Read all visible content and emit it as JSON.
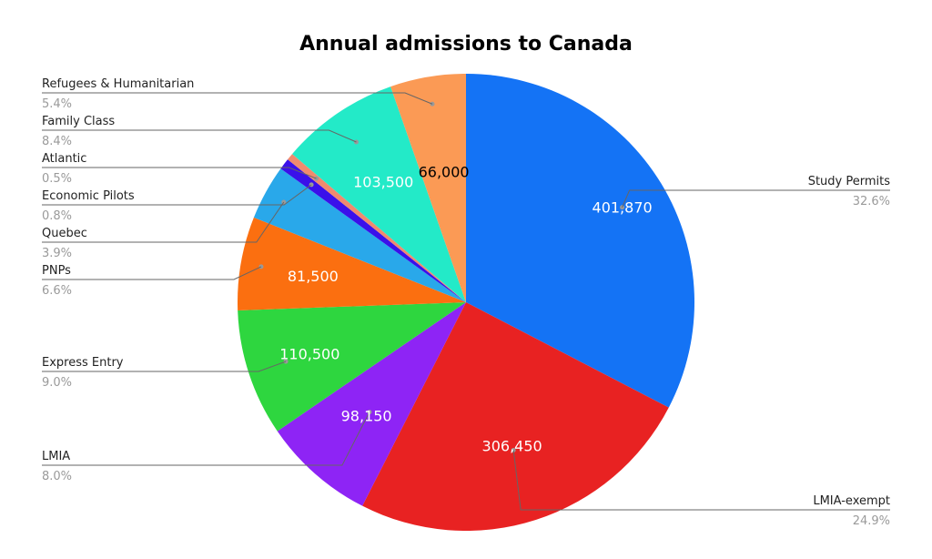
{
  "chart_data": {
    "type": "pie",
    "title": "Annual admissions to Canada",
    "slices": [
      {
        "label": "Study Permits",
        "value": 401870,
        "value_label": "401,870",
        "percent_label": "32.6%",
        "color": "#1473f5",
        "text_color": "#ffffff"
      },
      {
        "label": "LMIA-exempt",
        "value": 306450,
        "value_label": "306,450",
        "percent_label": "24.9%",
        "color": "#e82222",
        "text_color": "#ffffff"
      },
      {
        "label": "LMIA",
        "value": 98150,
        "value_label": "98,150",
        "percent_label": "8.0%",
        "color": "#8e24f5",
        "text_color": "#ffffff"
      },
      {
        "label": "Express Entry",
        "value": 110500,
        "value_label": "110,500",
        "percent_label": "9.0%",
        "color": "#2ed63f",
        "text_color": "#ffffff"
      },
      {
        "label": "PNPs",
        "value": 81500,
        "value_label": "81,500",
        "percent_label": "6.6%",
        "color": "#fb6f10",
        "text_color": "#ffffff"
      },
      {
        "label": "Quebec",
        "value": 48000,
        "value_label": "",
        "percent_label": "3.9%",
        "color": "#29a8ea",
        "text_color": "#ffffff"
      },
      {
        "label": "Economic Pilots",
        "value": 9850,
        "value_label": "",
        "percent_label": "0.8%",
        "color": "#3a10ea",
        "text_color": "#ffffff"
      },
      {
        "label": "Atlantic",
        "value": 6160,
        "value_label": "",
        "percent_label": "0.5%",
        "color": "#f08a6e",
        "text_color": "#ffffff"
      },
      {
        "label": "Family Class",
        "value": 103500,
        "value_label": "103,500",
        "percent_label": "8.4%",
        "color": "#23eac8",
        "text_color": "#ffffff"
      },
      {
        "label": "Refugees & Humanitarian",
        "value": 66000,
        "value_label": "66,000",
        "percent_label": "5.4%",
        "color": "#fb9a55",
        "text_color": "#000000"
      }
    ],
    "legend": "none",
    "labels": "outside with leader lines"
  }
}
